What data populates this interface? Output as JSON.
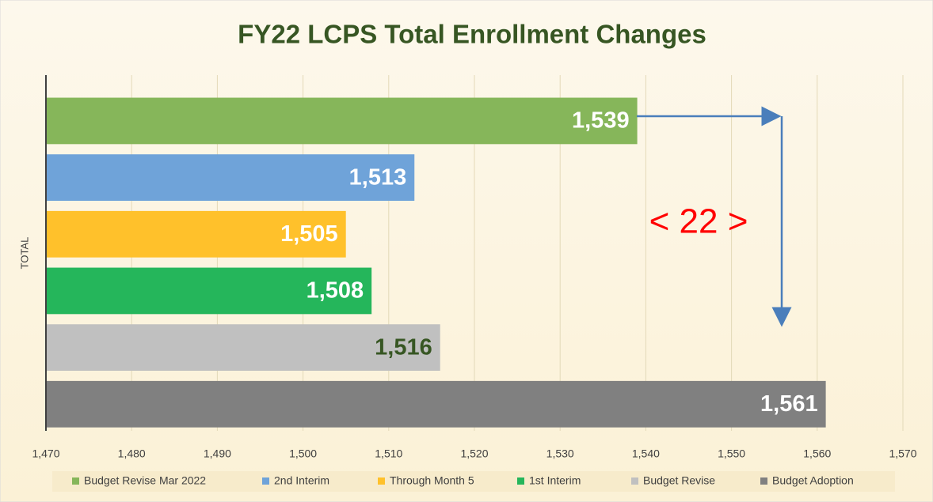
{
  "chart_data": {
    "type": "bar",
    "orientation": "horizontal",
    "title": "FY22 LCPS Total Enrollment Changes",
    "categories": [
      "TOTAL"
    ],
    "series": [
      {
        "name": "Budget Revise Mar 2022",
        "color": "#86B65A",
        "values": [
          1539
        ],
        "value_labels": [
          "1,539"
        ]
      },
      {
        "name": "2nd Interim",
        "color": "#6FA3D9",
        "values": [
          1513
        ],
        "value_labels": [
          "1,513"
        ]
      },
      {
        "name": "Through Month 5",
        "color": "#FFC12B",
        "values": [
          1505
        ],
        "value_labels": [
          "1,505"
        ]
      },
      {
        "name": "1st Interim",
        "color": "#25B65B",
        "values": [
          1508
        ],
        "value_labels": [
          "1,508"
        ]
      },
      {
        "name": "Budget Revise",
        "color": "#C0C0C0",
        "values": [
          1516
        ],
        "value_labels": [
          "1,516"
        ]
      },
      {
        "name": "Budget Adoption",
        "color": "#808080",
        "values": [
          1561
        ],
        "value_labels": [
          "1,561"
        ]
      }
    ],
    "xlim": [
      1470,
      1570
    ],
    "xticks": [
      {
        "value": 1470,
        "label": "1,470"
      },
      {
        "value": 1480,
        "label": "1,480"
      },
      {
        "value": 1490,
        "label": "1,490"
      },
      {
        "value": 1500,
        "label": "1,500"
      },
      {
        "value": 1510,
        "label": "1,510"
      },
      {
        "value": 1520,
        "label": "1,520"
      },
      {
        "value": 1530,
        "label": "1,530"
      },
      {
        "value": 1540,
        "label": "1,540"
      },
      {
        "value": 1550,
        "label": "1,550"
      },
      {
        "value": 1560,
        "label": "1,560"
      },
      {
        "value": 1570,
        "label": "1,570"
      }
    ],
    "grid": true,
    "legend": "bottom",
    "annotations": [
      {
        "text": "< 22 >",
        "color": "#FF0000"
      }
    ]
  }
}
